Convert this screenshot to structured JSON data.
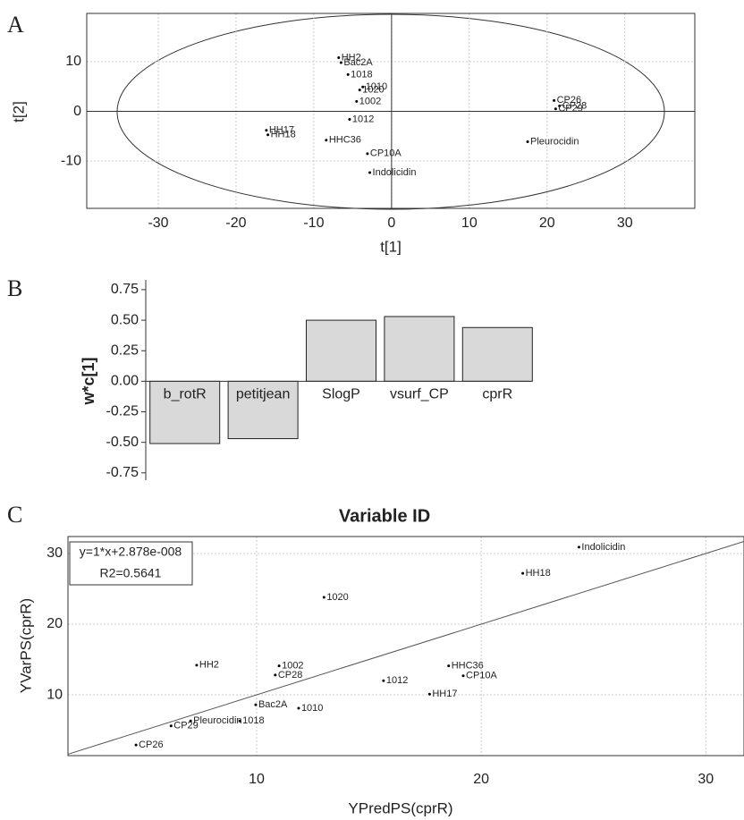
{
  "chart_data": [
    {
      "type": "scatter",
      "panel": "A",
      "x_label": "t[1]",
      "y_label": "t[2]",
      "labels": [
        "HH2",
        "Bac2A",
        "1018",
        "1020",
        "1010",
        "1002",
        "1012",
        "HH17",
        "HH18",
        "HHC36",
        "CP10A",
        "Indolicidin",
        "CP26",
        "CP28",
        "CP29",
        "Pleurocidin"
      ],
      "x": [
        -6.8,
        -6.5,
        -5.6,
        -4.1,
        -3.7,
        -4.5,
        -5.4,
        -16.1,
        -15.9,
        -8.4,
        -3.1,
        -2.8,
        20.9,
        21.6,
        21.1,
        17.5
      ],
      "y": [
        10.8,
        9.8,
        7.4,
        4.3,
        4.9,
        2.0,
        -1.6,
        -3.8,
        -4.7,
        -5.8,
        -8.5,
        -12.3,
        2.2,
        1.1,
        0.5,
        -6.1
      ],
      "xlim": [
        -39.2,
        39
      ],
      "ylim": [
        -19.5,
        19.7
      ],
      "xticks": [
        -30,
        -20,
        -10,
        0,
        10,
        20,
        30
      ],
      "yticks": [
        -10,
        0,
        10
      ],
      "grid": true,
      "color": "#000000"
    },
    {
      "type": "bar",
      "panel": "B",
      "y_label": "w*c[1]",
      "categories": [
        "b_rotR",
        "petitjean",
        "SlogP",
        "vsurf_CP",
        "cprR"
      ],
      "values": [
        -0.51,
        -0.47,
        0.5,
        0.53,
        0.44
      ],
      "ylim": [
        -0.81,
        0.83
      ],
      "yticks": [
        {
          "value": 0.75,
          "label": "0.75"
        },
        {
          "value": 0.5,
          "label": "0.50"
        },
        {
          "value": 0.25,
          "label": "0.25"
        },
        {
          "value": 0,
          "label": "0.00"
        },
        {
          "value": -0.25,
          "label": "-0.25"
        },
        {
          "value": -0.5,
          "label": "-0.50"
        },
        {
          "value": -0.75,
          "label": "-0.75"
        }
      ],
      "color": "#d9d9d9"
    },
    {
      "type": "scatter",
      "panel": "C",
      "title": "Variable ID",
      "x_label": "YPredPS(cprR)",
      "y_label": "YVarPS(cprR)",
      "annotation": [
        "y=1*x+2.878e-008",
        "R2=0.5641"
      ],
      "fit": {
        "slope": 1,
        "intercept": 2.878e-08
      },
      "labels": [
        "Indolicidin",
        "HH18",
        "1020",
        "HH2",
        "1002",
        "CP28",
        "HHC36",
        "CP10A",
        "1012",
        "HH17",
        "Bac2A",
        "1010",
        "Pleurocidin",
        "1018",
        "CP29",
        "CP26"
      ],
      "x": [
        24.35,
        21.85,
        13.0,
        7.33,
        11.0,
        10.83,
        18.55,
        19.2,
        15.65,
        17.7,
        9.96,
        11.87,
        7.06,
        9.25,
        6.19,
        4.63
      ],
      "y": [
        30.9,
        27.2,
        23.8,
        14.2,
        14.1,
        12.8,
        14.1,
        12.7,
        12.0,
        10.1,
        8.6,
        8.1,
        6.3,
        6.3,
        5.6,
        2.9
      ],
      "xlim": [
        1.6,
        31.7
      ],
      "ylim": [
        1.4,
        32.4
      ],
      "xticks": [
        10,
        20,
        30
      ],
      "yticks": [
        10,
        20,
        30
      ],
      "grid": true,
      "color": "#000000"
    }
  ]
}
